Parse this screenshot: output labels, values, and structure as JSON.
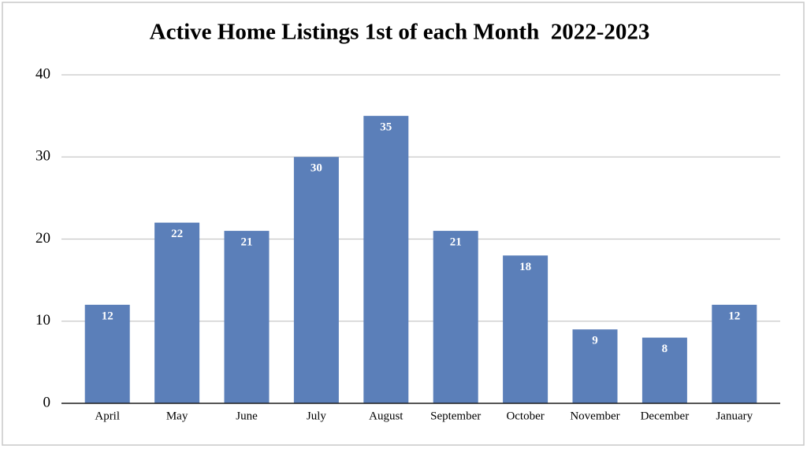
{
  "chart_data": {
    "type": "bar",
    "title": "Active Home Listings 1st of each Month  2022-2023",
    "categories": [
      "April",
      "May",
      "June",
      "July",
      "August",
      "September",
      "October",
      "November",
      "December",
      "January"
    ],
    "values": [
      12,
      22,
      21,
      30,
      35,
      21,
      18,
      9,
      8,
      12
    ],
    "color": "#5b7fb9",
    "ylim": [
      0,
      40
    ],
    "yticks": [
      0,
      10,
      20,
      30,
      40
    ],
    "grid": true
  }
}
